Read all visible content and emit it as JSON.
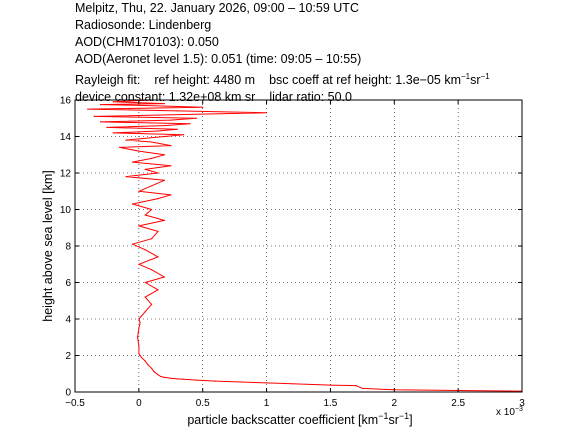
{
  "header": {
    "line1": "Melpitz, Thu, 22. January 2026, 09:00 – 10:59 UTC",
    "line2": "Radiosonde: Lindenberg",
    "line3": "AOD(CHM170103): 0.050",
    "line4": "AOD(Aeronet level 1.5): 0.051   (time: 09:05 – 10:55)",
    "rayleigh_label": "Rayleigh fit:",
    "ref_height": "ref height: 4480 m",
    "bsc_coeff_prefix": "bsc coeff at ref height: 1.3e−05 km",
    "bsc_coeff_exp1": "−1",
    "bsc_coeff_mid": "sr",
    "bsc_coeff_exp2": "−1",
    "device_constant": "device constant: 1.32e+08 km sr",
    "lidar_ratio": "lidar ratio: 50.0"
  },
  "chart_data": {
    "type": "line",
    "title": "",
    "xlabel_main": "particle backscatter coefficient [km",
    "xlabel_exp1": "−1",
    "xlabel_mid": "sr",
    "xlabel_exp2": "−1",
    "xlabel_end": "]",
    "ylabel": "height above sea level [km]",
    "x_multiplier_label": "x 10",
    "x_multiplier_exp": "−3",
    "xlim": [
      -0.5,
      3
    ],
    "ylim": [
      0,
      16
    ],
    "xticks": [
      -0.5,
      0,
      0.5,
      1,
      1.5,
      2,
      2.5,
      3
    ],
    "xtick_labels": [
      "−0.5",
      "0",
      "0.5",
      "1",
      "1.5",
      "2",
      "2.5",
      "3"
    ],
    "yticks": [
      0,
      2,
      4,
      6,
      8,
      10,
      12,
      14,
      16
    ],
    "ytick_labels": [
      "0",
      "2",
      "4",
      "6",
      "8",
      "10",
      "12",
      "14",
      "16"
    ],
    "grid": true,
    "line_color": "#ff0000",
    "series": [
      {
        "x": [
          3.0,
          2.5,
          2.0,
          1.75,
          1.7,
          1.5,
          1.2,
          1.0,
          0.8,
          0.6,
          0.45,
          0.35,
          0.3,
          0.25,
          0.2,
          0.17,
          0.15,
          0.12,
          0.1,
          0.07,
          0.05,
          0.02,
          0.0,
          0.0,
          -0.01,
          0.0,
          0.01,
          0.0,
          0.05,
          0.1,
          0.05,
          0.15,
          0.05,
          0.2,
          0.1,
          0.0,
          0.15,
          0.05,
          -0.05,
          0.1,
          0.15,
          0.0,
          0.2,
          0.05,
          0.1,
          -0.05,
          0.15,
          0.25,
          0.0,
          0.1,
          0.2,
          -0.1,
          0.15,
          0.05,
          0.25,
          -0.05,
          0.1,
          0.2,
          0.0,
          -0.15,
          0.25,
          0.1,
          -0.1,
          0.2,
          0.35,
          -0.2,
          0.15,
          0.3,
          -0.25,
          0.2,
          0.4,
          -0.3,
          0.25,
          0.45,
          -0.35,
          1.0,
          0.3,
          -0.4,
          0.5,
          0.05,
          -0.3,
          0.2,
          -0.2,
          0.1
        ],
        "y": [
          0.05,
          0.08,
          0.12,
          0.2,
          0.35,
          0.38,
          0.45,
          0.5,
          0.55,
          0.6,
          0.65,
          0.7,
          0.72,
          0.75,
          0.8,
          0.85,
          0.95,
          1.1,
          1.3,
          1.5,
          1.7,
          1.9,
          2.1,
          2.5,
          3.0,
          3.5,
          3.8,
          4.0,
          4.4,
          4.8,
          5.2,
          5.6,
          6.0,
          6.3,
          6.7,
          7.0,
          7.4,
          7.8,
          8.1,
          8.4,
          8.8,
          9.1,
          9.4,
          9.7,
          10.0,
          10.3,
          10.6,
          10.8,
          11.0,
          11.3,
          11.6,
          11.8,
          12.0,
          12.2,
          12.4,
          12.6,
          12.8,
          13.0,
          13.2,
          13.4,
          13.5,
          13.7,
          13.8,
          14.0,
          14.1,
          14.2,
          14.3,
          14.4,
          14.5,
          14.6,
          14.7,
          14.8,
          14.9,
          15.0,
          15.1,
          15.3,
          15.4,
          15.5,
          15.6,
          15.7,
          15.75,
          15.8,
          15.9,
          16.0
        ]
      }
    ]
  }
}
